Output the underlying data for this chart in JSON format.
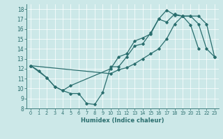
{
  "xlabel": "Humidex (Indice chaleur)",
  "bg_color": "#cce8e8",
  "line_color": "#2a6e6e",
  "xlim": [
    -0.5,
    23.5
  ],
  "ylim": [
    8,
    18.5
  ],
  "xticks": [
    0,
    1,
    2,
    3,
    4,
    5,
    6,
    7,
    8,
    9,
    10,
    11,
    12,
    13,
    14,
    15,
    16,
    17,
    18,
    19,
    20,
    21,
    22,
    23
  ],
  "yticks": [
    8,
    9,
    10,
    11,
    12,
    13,
    14,
    15,
    16,
    17,
    18
  ],
  "lines": [
    {
      "x": [
        0,
        1,
        2,
        3,
        4,
        5,
        6,
        7,
        8,
        9,
        10,
        11,
        12,
        13,
        14,
        15,
        16,
        17,
        18,
        19,
        20,
        21
      ],
      "y": [
        12.3,
        11.8,
        11.1,
        10.2,
        9.8,
        9.5,
        9.5,
        8.5,
        8.4,
        9.6,
        12.2,
        12.2,
        13.2,
        14.3,
        14.5,
        15.6,
        17.0,
        17.9,
        17.4,
        17.3,
        16.4,
        14.0
      ]
    },
    {
      "x": [
        0,
        10,
        11,
        12,
        13,
        14,
        15,
        16,
        17,
        18,
        19,
        20,
        21,
        22,
        23
      ],
      "y": [
        12.3,
        11.5,
        11.9,
        12.1,
        12.5,
        13.0,
        13.5,
        14.0,
        15.0,
        16.5,
        17.3,
        17.3,
        17.3,
        16.5,
        13.2
      ]
    },
    {
      "x": [
        0,
        2,
        3,
        4,
        5,
        10,
        11,
        12,
        13,
        14,
        15,
        16,
        17,
        18,
        19,
        20,
        21,
        22,
        23
      ],
      "y": [
        12.3,
        11.1,
        10.2,
        9.8,
        10.3,
        12.0,
        13.2,
        13.5,
        14.8,
        15.1,
        15.5,
        17.0,
        16.7,
        17.5,
        17.3,
        17.3,
        16.5,
        14.0,
        13.2
      ]
    }
  ]
}
